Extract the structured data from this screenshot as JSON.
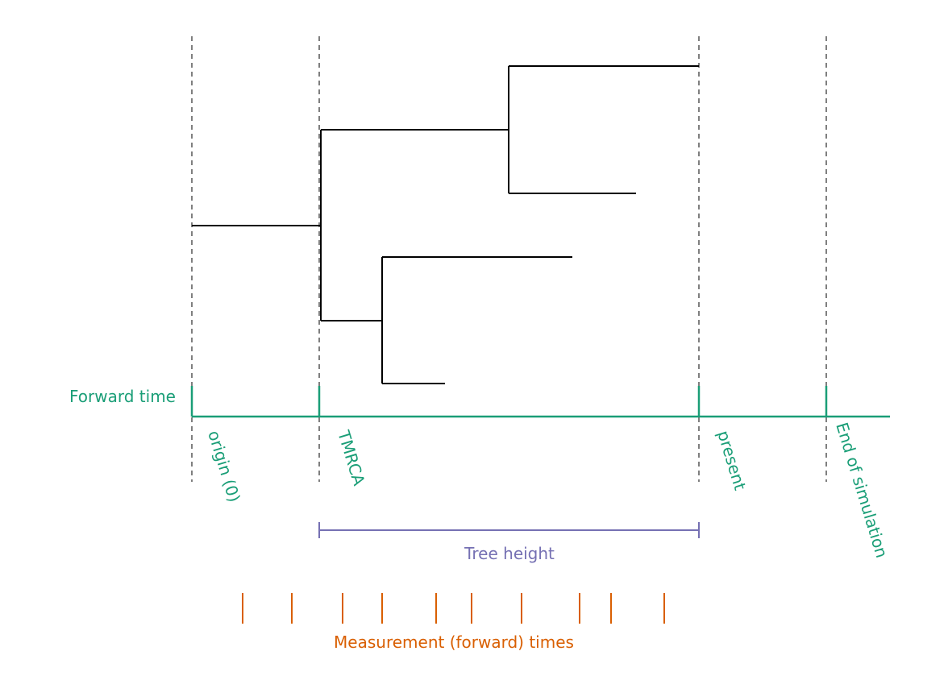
{
  "diagram": {
    "axis_label": "Forward time",
    "markers": {
      "origin": "origin (0)",
      "tmrca": "TMRCA",
      "present": "present",
      "end": "End of simulation"
    },
    "span_label": "Tree height",
    "measurement_label": "Measurement (forward) times",
    "colors": {
      "time_axis": "#1a9e77",
      "tree_height": "#7570b3",
      "measurements": "#d95f02",
      "tree": "#000000",
      "guides": "#555555"
    }
  }
}
